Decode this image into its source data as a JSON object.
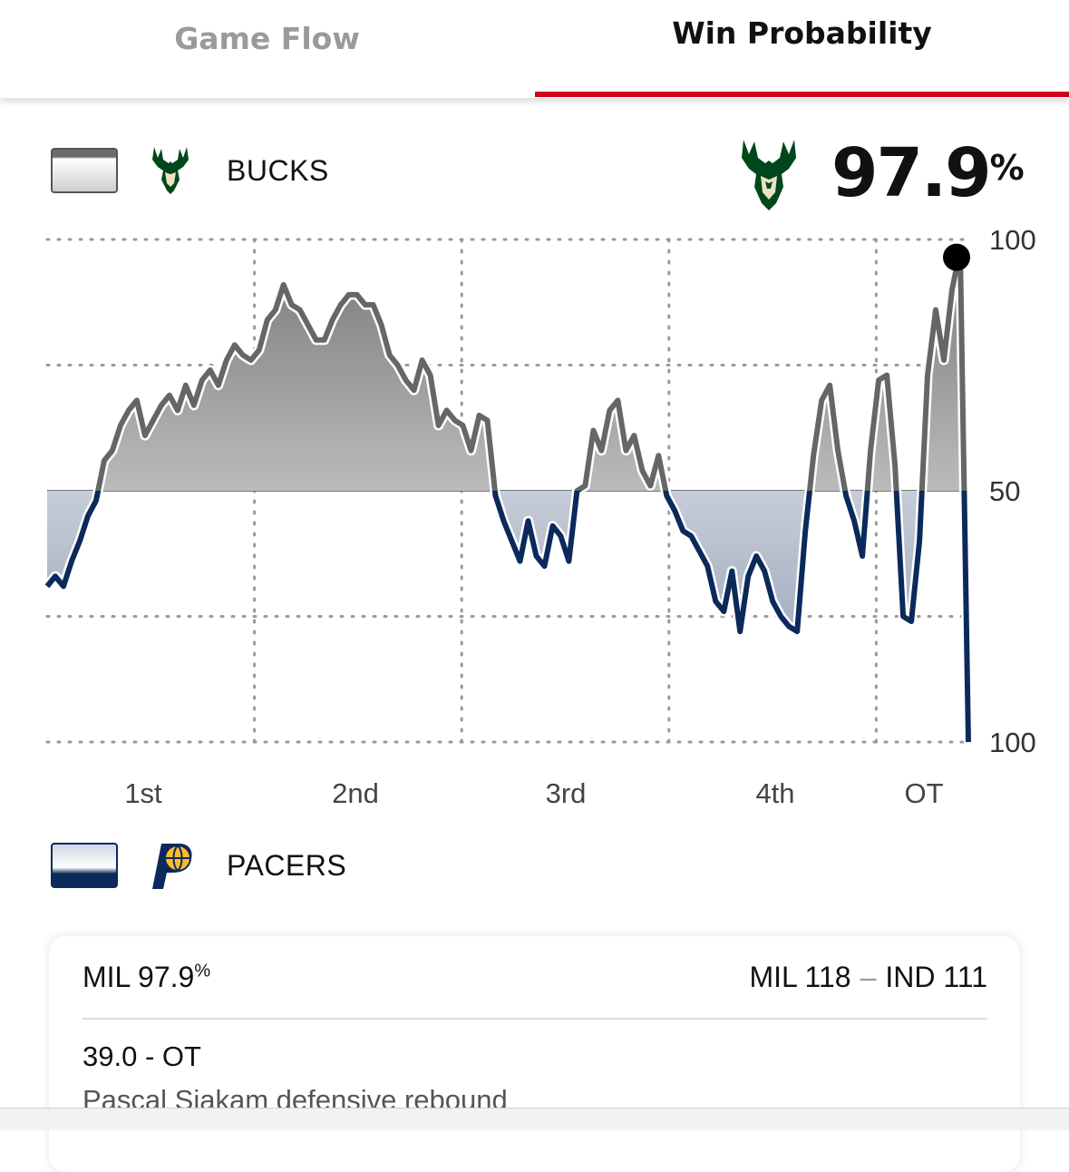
{
  "tabs": [
    {
      "label": "Game Flow",
      "active": false
    },
    {
      "label": "Win Probability",
      "active": true
    }
  ],
  "teams": {
    "top": {
      "name": "BUCKS",
      "color": "#666666"
    },
    "bottom": {
      "name": "PACERS",
      "color": "#0b2a5b"
    }
  },
  "headline": {
    "value": "97.9",
    "unit": "%"
  },
  "chart_data": {
    "type": "line",
    "y_labels_right": [
      "100",
      "50",
      "100"
    ],
    "yaxis_center": 50,
    "ylim": [
      0,
      100
    ],
    "grid": true,
    "categories": [
      "1st",
      "2nd",
      "3rd",
      "4th",
      "OT"
    ],
    "x": [
      0,
      1,
      2,
      3,
      4,
      5,
      6,
      7,
      8,
      9,
      10,
      11,
      12,
      13,
      14,
      15,
      16,
      17,
      18,
      19,
      20,
      21,
      22,
      23,
      24,
      25,
      26,
      27,
      28,
      29,
      30,
      31,
      32,
      33,
      34,
      35,
      36,
      37,
      38,
      39,
      40,
      41,
      42,
      43,
      44,
      45,
      46,
      47,
      48,
      49,
      50,
      51,
      52,
      53,
      54,
      55,
      56,
      57,
      58,
      59,
      60,
      61,
      62,
      63,
      64,
      65,
      66,
      67,
      68,
      69,
      70,
      71,
      72,
      73,
      74,
      75,
      76,
      77,
      78,
      79,
      80,
      81,
      82,
      83,
      84,
      85,
      86,
      87,
      88,
      89,
      90,
      91,
      92,
      93,
      94,
      95,
      96,
      97,
      98,
      99,
      100,
      101,
      102,
      103,
      104,
      105,
      106,
      107,
      108,
      109,
      110,
      111,
      112,
      113
    ],
    "bucks_win_pct": [
      31,
      33,
      31,
      36,
      40,
      45,
      48,
      56,
      58,
      63,
      66,
      68,
      61,
      64,
      67,
      69,
      66,
      71,
      67,
      72,
      74,
      71,
      76,
      79,
      77,
      76,
      78,
      84,
      86,
      91,
      87,
      86,
      83,
      80,
      80,
      84,
      87,
      89,
      89,
      87,
      87,
      83,
      77,
      75,
      72,
      70,
      76,
      73,
      63,
      66,
      64,
      63,
      58,
      65,
      64,
      49,
      44,
      40,
      36,
      44,
      37,
      35,
      43,
      41,
      36,
      50,
      51,
      62,
      58,
      66,
      68,
      58,
      61,
      54,
      51,
      57,
      49,
      46,
      42,
      41,
      38,
      35,
      28,
      26,
      34,
      22,
      33,
      37,
      34,
      28,
      25,
      23,
      22,
      42,
      57,
      68,
      71,
      58,
      49,
      44,
      37,
      58,
      72,
      73,
      55,
      25,
      24,
      40,
      73,
      86,
      76,
      90,
      98,
      0
    ],
    "ot_marker_value": 97.9
  },
  "quarter_labels": [
    "1st",
    "2nd",
    "3rd",
    "4th",
    "OT"
  ],
  "card": {
    "mil_pct_label": "MIL 97.9",
    "mil_pct_unit": "%",
    "score_left": "MIL 118",
    "score_sep": "–",
    "score_right": "IND 111",
    "time": "39.0 - OT",
    "play": "Pascal Siakam defensive rebound"
  }
}
